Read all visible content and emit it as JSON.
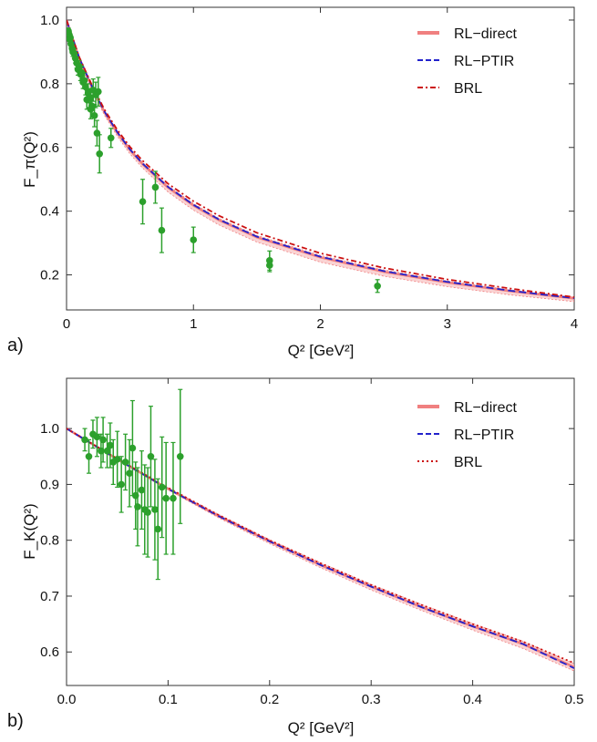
{
  "chart_data": [
    {
      "type": "line",
      "panel_label": "a)",
      "ylabel": "F_π(Q²)",
      "xlabel": "Q² [GeV²]",
      "xlim": [
        0,
        4
      ],
      "ylim": [
        0.09,
        1.04
      ],
      "xticks": [
        0,
        1,
        2,
        3,
        4
      ],
      "xtick_labels": [
        "0",
        "1",
        "2",
        "3",
        "4"
      ],
      "yticks": [
        0.2,
        0.4,
        0.6,
        0.8,
        1.0
      ],
      "ytick_labels": [
        "0.2",
        "0.4",
        "0.6",
        "0.8",
        "1.0"
      ],
      "grid": false,
      "legend": {
        "position": "top-right",
        "entries": [
          {
            "name": "RL−direct",
            "color": "#f08080",
            "style": "thick"
          },
          {
            "name": "RL−PTIR",
            "color": "#2222cc",
            "style": "dashed"
          },
          {
            "name": "BRL",
            "color": "#cc1111",
            "style": "dotdash"
          }
        ]
      },
      "series": [
        {
          "name": "RL−direct",
          "color": "#f08080",
          "x": [
            0,
            0.1,
            0.2,
            0.3,
            0.4,
            0.5,
            0.6,
            0.8,
            1.0,
            1.2,
            1.5,
            2.0,
            2.5,
            3.0,
            3.5,
            4.0
          ],
          "y": [
            1.0,
            0.88,
            0.79,
            0.71,
            0.646,
            0.592,
            0.547,
            0.474,
            0.418,
            0.372,
            0.318,
            0.255,
            0.21,
            0.176,
            0.149,
            0.126
          ],
          "band_low": [
            1.0,
            0.875,
            0.78,
            0.7,
            0.635,
            0.58,
            0.535,
            0.46,
            0.403,
            0.357,
            0.303,
            0.24,
            0.196,
            0.163,
            0.137,
            0.116
          ],
          "band_high": [
            1.0,
            0.885,
            0.795,
            0.716,
            0.652,
            0.598,
            0.553,
            0.48,
            0.424,
            0.378,
            0.324,
            0.261,
            0.216,
            0.181,
            0.153,
            0.13
          ]
        },
        {
          "name": "RL−PTIR",
          "color": "#2222cc",
          "x": [
            0,
            0.1,
            0.2,
            0.3,
            0.4,
            0.5,
            0.6,
            0.8,
            1.0,
            1.2,
            1.5,
            2.0,
            2.5,
            3.0,
            3.5,
            4.0
          ],
          "y": [
            1.0,
            0.882,
            0.792,
            0.712,
            0.648,
            0.594,
            0.549,
            0.476,
            0.42,
            0.374,
            0.32,
            0.257,
            0.212,
            0.178,
            0.15,
            0.127
          ]
        },
        {
          "name": "BRL",
          "color": "#cc1111",
          "x": [
            0,
            0.1,
            0.2,
            0.3,
            0.4,
            0.5,
            0.6,
            0.8,
            1.0,
            1.2,
            1.5,
            2.0,
            2.5,
            3.0,
            3.5,
            4.0
          ],
          "y": [
            1.0,
            0.884,
            0.796,
            0.718,
            0.655,
            0.602,
            0.558,
            0.486,
            0.431,
            0.386,
            0.332,
            0.268,
            0.222,
            0.186,
            0.157,
            0.13
          ]
        }
      ],
      "data_points": [
        {
          "x": 0.015,
          "y": 0.965,
          "err": 0.01
        },
        {
          "x": 0.02,
          "y": 0.955,
          "err": 0.01
        },
        {
          "x": 0.025,
          "y": 0.94,
          "err": 0.012
        },
        {
          "x": 0.03,
          "y": 0.945,
          "err": 0.01
        },
        {
          "x": 0.035,
          "y": 0.925,
          "err": 0.012
        },
        {
          "x": 0.045,
          "y": 0.91,
          "err": 0.012
        },
        {
          "x": 0.05,
          "y": 0.9,
          "err": 0.014
        },
        {
          "x": 0.06,
          "y": 0.895,
          "err": 0.015
        },
        {
          "x": 0.07,
          "y": 0.88,
          "err": 0.015
        },
        {
          "x": 0.08,
          "y": 0.865,
          "err": 0.016
        },
        {
          "x": 0.09,
          "y": 0.845,
          "err": 0.018
        },
        {
          "x": 0.1,
          "y": 0.855,
          "err": 0.018
        },
        {
          "x": 0.11,
          "y": 0.83,
          "err": 0.02
        },
        {
          "x": 0.12,
          "y": 0.835,
          "err": 0.02
        },
        {
          "x": 0.13,
          "y": 0.805,
          "err": 0.02
        },
        {
          "x": 0.14,
          "y": 0.81,
          "err": 0.025
        },
        {
          "x": 0.15,
          "y": 0.79,
          "err": 0.025
        },
        {
          "x": 0.16,
          "y": 0.75,
          "err": 0.03
        },
        {
          "x": 0.17,
          "y": 0.77,
          "err": 0.03
        },
        {
          "x": 0.18,
          "y": 0.755,
          "err": 0.03
        },
        {
          "x": 0.19,
          "y": 0.72,
          "err": 0.03
        },
        {
          "x": 0.2,
          "y": 0.73,
          "err": 0.035
        },
        {
          "x": 0.21,
          "y": 0.78,
          "err": 0.035
        },
        {
          "x": 0.22,
          "y": 0.7,
          "err": 0.035
        },
        {
          "x": 0.23,
          "y": 0.765,
          "err": 0.04
        },
        {
          "x": 0.24,
          "y": 0.645,
          "err": 0.04
        },
        {
          "x": 0.25,
          "y": 0.775,
          "err": 0.045
        },
        {
          "x": 0.26,
          "y": 0.58,
          "err": 0.06
        },
        {
          "x": 0.35,
          "y": 0.63,
          "err": 0.03
        },
        {
          "x": 0.6,
          "y": 0.43,
          "err": 0.07
        },
        {
          "x": 0.7,
          "y": 0.475,
          "err": 0.05
        },
        {
          "x": 0.75,
          "y": 0.34,
          "err": 0.07
        },
        {
          "x": 1.0,
          "y": 0.31,
          "err": 0.04
        },
        {
          "x": 1.6,
          "y": 0.245,
          "err": 0.03
        },
        {
          "x": 1.6,
          "y": 0.23,
          "err": 0.02
        },
        {
          "x": 2.45,
          "y": 0.165,
          "err": 0.02
        }
      ]
    },
    {
      "type": "line",
      "panel_label": "b)",
      "ylabel": "F_K(Q²)",
      "xlabel": "Q² [GeV²]",
      "xlim": [
        0,
        0.5
      ],
      "ylim": [
        0.54,
        1.09
      ],
      "xticks": [
        0.0,
        0.1,
        0.2,
        0.3,
        0.4,
        0.5
      ],
      "xtick_labels": [
        "0.0",
        "0.1",
        "0.2",
        "0.3",
        "0.4",
        "0.5"
      ],
      "yticks": [
        0.6,
        0.7,
        0.8,
        0.9,
        1.0
      ],
      "ytick_labels": [
        "0.6",
        "0.7",
        "0.8",
        "0.9",
        "1.0"
      ],
      "grid": false,
      "legend": {
        "position": "top-right",
        "entries": [
          {
            "name": "RL−direct",
            "color": "#f08080",
            "style": "thick"
          },
          {
            "name": "RL−PTIR",
            "color": "#2222cc",
            "style": "dashed"
          },
          {
            "name": "BRL",
            "color": "#cc1111",
            "style": "dotted"
          }
        ]
      },
      "series": [
        {
          "name": "RL−direct",
          "color": "#f08080",
          "x": [
            0,
            0.05,
            0.1,
            0.15,
            0.2,
            0.25,
            0.3,
            0.35,
            0.4,
            0.45,
            0.5
          ],
          "y": [
            1.0,
            0.945,
            0.892,
            0.843,
            0.798,
            0.756,
            0.717,
            0.68,
            0.646,
            0.614,
            0.573
          ],
          "band_low": [
            1.0,
            0.944,
            0.89,
            0.84,
            0.794,
            0.751,
            0.711,
            0.674,
            0.639,
            0.606,
            0.566
          ],
          "band_high": [
            1.0,
            0.946,
            0.894,
            0.846,
            0.801,
            0.76,
            0.721,
            0.685,
            0.651,
            0.619,
            0.579
          ]
        },
        {
          "name": "RL−PTIR",
          "color": "#2222cc",
          "x": [
            0,
            0.05,
            0.1,
            0.15,
            0.2,
            0.25,
            0.3,
            0.35,
            0.4,
            0.45,
            0.5
          ],
          "y": [
            1.0,
            0.945,
            0.892,
            0.843,
            0.798,
            0.756,
            0.717,
            0.68,
            0.646,
            0.614,
            0.571
          ]
        },
        {
          "name": "BRL",
          "color": "#cc1111",
          "x": [
            0,
            0.05,
            0.1,
            0.15,
            0.2,
            0.25,
            0.3,
            0.35,
            0.4,
            0.45,
            0.5
          ],
          "y": [
            1.0,
            0.946,
            0.894,
            0.845,
            0.8,
            0.759,
            0.72,
            0.684,
            0.65,
            0.618,
            0.58
          ]
        }
      ],
      "data_points": [
        {
          "x": 0.018,
          "y": 0.98,
          "err": 0.02
        },
        {
          "x": 0.022,
          "y": 0.95,
          "err": 0.03
        },
        {
          "x": 0.026,
          "y": 0.99,
          "err": 0.025
        },
        {
          "x": 0.03,
          "y": 0.985,
          "err": 0.035
        },
        {
          "x": 0.034,
          "y": 0.96,
          "err": 0.03
        },
        {
          "x": 0.036,
          "y": 0.98,
          "err": 0.04
        },
        {
          "x": 0.04,
          "y": 0.96,
          "err": 0.03
        },
        {
          "x": 0.043,
          "y": 0.97,
          "err": 0.04
        },
        {
          "x": 0.046,
          "y": 0.94,
          "err": 0.04
        },
        {
          "x": 0.05,
          "y": 0.945,
          "err": 0.05
        },
        {
          "x": 0.054,
          "y": 0.9,
          "err": 0.05
        },
        {
          "x": 0.058,
          "y": 0.94,
          "err": 0.05
        },
        {
          "x": 0.062,
          "y": 0.92,
          "err": 0.06
        },
        {
          "x": 0.065,
          "y": 0.965,
          "err": 0.085
        },
        {
          "x": 0.068,
          "y": 0.88,
          "err": 0.06
        },
        {
          "x": 0.07,
          "y": 0.86,
          "err": 0.07
        },
        {
          "x": 0.074,
          "y": 0.89,
          "err": 0.07
        },
        {
          "x": 0.077,
          "y": 0.855,
          "err": 0.08
        },
        {
          "x": 0.08,
          "y": 0.85,
          "err": 0.08
        },
        {
          "x": 0.083,
          "y": 0.95,
          "err": 0.09
        },
        {
          "x": 0.087,
          "y": 0.855,
          "err": 0.09
        },
        {
          "x": 0.09,
          "y": 0.82,
          "err": 0.09
        },
        {
          "x": 0.094,
          "y": 0.895,
          "err": 0.09
        },
        {
          "x": 0.098,
          "y": 0.875,
          "err": 0.1
        },
        {
          "x": 0.105,
          "y": 0.875,
          "err": 0.1
        },
        {
          "x": 0.112,
          "y": 0.95,
          "err": 0.12
        }
      ]
    }
  ]
}
